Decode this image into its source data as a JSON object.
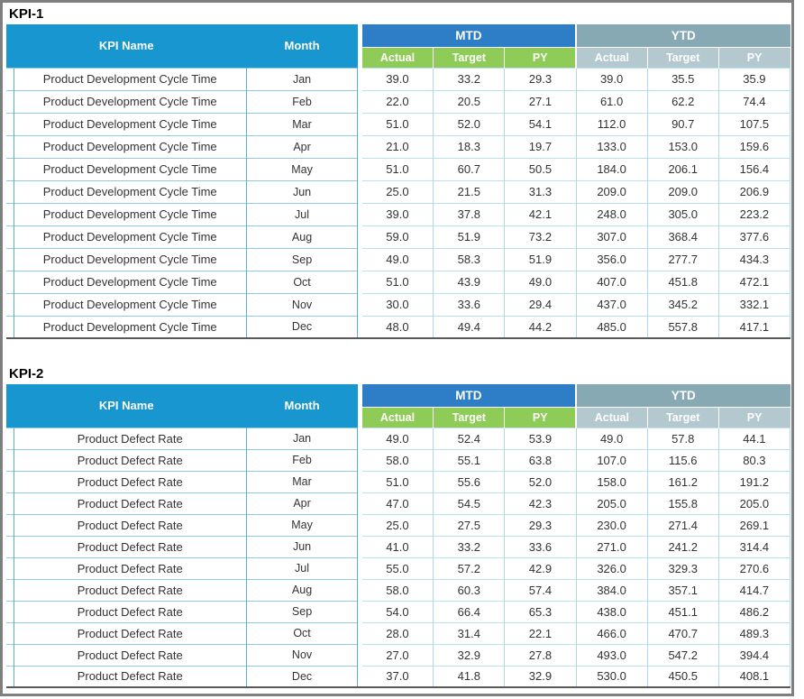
{
  "colors": {
    "frame_gray": "#7F7F7F",
    "header_blue": "#1796D0",
    "mtd_blue": "#2E7EC7",
    "mtd_subheader_green": "#8FCB57",
    "ytd_gray": "#87A9B3",
    "ytd_subheader_gray": "#B4C8D0",
    "cell_border_teal": "#55B1CF",
    "cell_border_light": "#ABD9EA",
    "table_bottom_border": "#595959"
  },
  "tables": [
    {
      "title": "KPI-1",
      "header": {
        "kpi_name": "KPI Name",
        "month": "Month",
        "mtd": "MTD",
        "ytd": "YTD",
        "mtd_actual": "Actual",
        "mtd_target": "Target",
        "mtd_py": "PY",
        "ytd_actual": "Actual",
        "ytd_target": "Target",
        "ytd_py": "PY"
      },
      "rows": [
        {
          "kpi": "Product Development Cycle Time",
          "month": "Jan",
          "mtd_actual": "39.0",
          "mtd_target": "33.2",
          "mtd_py": "29.3",
          "ytd_actual": "39.0",
          "ytd_target": "35.5",
          "ytd_py": "35.9"
        },
        {
          "kpi": "Product Development Cycle Time",
          "month": "Feb",
          "mtd_actual": "22.0",
          "mtd_target": "20.5",
          "mtd_py": "27.1",
          "ytd_actual": "61.0",
          "ytd_target": "62.2",
          "ytd_py": "74.4"
        },
        {
          "kpi": "Product Development Cycle Time",
          "month": "Mar",
          "mtd_actual": "51.0",
          "mtd_target": "52.0",
          "mtd_py": "54.1",
          "ytd_actual": "112.0",
          "ytd_target": "90.7",
          "ytd_py": "107.5"
        },
        {
          "kpi": "Product Development Cycle Time",
          "month": "Apr",
          "mtd_actual": "21.0",
          "mtd_target": "18.3",
          "mtd_py": "19.7",
          "ytd_actual": "133.0",
          "ytd_target": "153.0",
          "ytd_py": "159.6"
        },
        {
          "kpi": "Product Development Cycle Time",
          "month": "May",
          "mtd_actual": "51.0",
          "mtd_target": "60.7",
          "mtd_py": "50.5",
          "ytd_actual": "184.0",
          "ytd_target": "206.1",
          "ytd_py": "156.4"
        },
        {
          "kpi": "Product Development Cycle Time",
          "month": "Jun",
          "mtd_actual": "25.0",
          "mtd_target": "21.5",
          "mtd_py": "31.3",
          "ytd_actual": "209.0",
          "ytd_target": "209.0",
          "ytd_py": "206.9"
        },
        {
          "kpi": "Product Development Cycle Time",
          "month": "Jul",
          "mtd_actual": "39.0",
          "mtd_target": "37.8",
          "mtd_py": "42.1",
          "ytd_actual": "248.0",
          "ytd_target": "305.0",
          "ytd_py": "223.2"
        },
        {
          "kpi": "Product Development Cycle Time",
          "month": "Aug",
          "mtd_actual": "59.0",
          "mtd_target": "51.9",
          "mtd_py": "73.2",
          "ytd_actual": "307.0",
          "ytd_target": "368.4",
          "ytd_py": "377.6"
        },
        {
          "kpi": "Product Development Cycle Time",
          "month": "Sep",
          "mtd_actual": "49.0",
          "mtd_target": "58.3",
          "mtd_py": "51.9",
          "ytd_actual": "356.0",
          "ytd_target": "277.7",
          "ytd_py": "434.3"
        },
        {
          "kpi": "Product Development Cycle Time",
          "month": "Oct",
          "mtd_actual": "51.0",
          "mtd_target": "43.9",
          "mtd_py": "49.0",
          "ytd_actual": "407.0",
          "ytd_target": "451.8",
          "ytd_py": "472.1"
        },
        {
          "kpi": "Product Development Cycle Time",
          "month": "Nov",
          "mtd_actual": "30.0",
          "mtd_target": "33.6",
          "mtd_py": "29.4",
          "ytd_actual": "437.0",
          "ytd_target": "345.2",
          "ytd_py": "332.1"
        },
        {
          "kpi": "Product Development Cycle Time",
          "month": "Dec",
          "mtd_actual": "48.0",
          "mtd_target": "49.4",
          "mtd_py": "44.2",
          "ytd_actual": "485.0",
          "ytd_target": "557.8",
          "ytd_py": "417.1"
        }
      ]
    },
    {
      "title": "KPI-2",
      "header": {
        "kpi_name": "KPI Name",
        "month": "Month",
        "mtd": "MTD",
        "ytd": "YTD",
        "mtd_actual": "Actual",
        "mtd_target": "Target",
        "mtd_py": "PY",
        "ytd_actual": "Actual",
        "ytd_target": "Target",
        "ytd_py": "PY"
      },
      "rows": [
        {
          "kpi": "Product Defect Rate",
          "month": "Jan",
          "mtd_actual": "49.0",
          "mtd_target": "52.4",
          "mtd_py": "53.9",
          "ytd_actual": "49.0",
          "ytd_target": "57.8",
          "ytd_py": "44.1"
        },
        {
          "kpi": "Product Defect Rate",
          "month": "Feb",
          "mtd_actual": "58.0",
          "mtd_target": "55.1",
          "mtd_py": "63.8",
          "ytd_actual": "107.0",
          "ytd_target": "115.6",
          "ytd_py": "80.3"
        },
        {
          "kpi": "Product Defect Rate",
          "month": "Mar",
          "mtd_actual": "51.0",
          "mtd_target": "55.6",
          "mtd_py": "52.0",
          "ytd_actual": "158.0",
          "ytd_target": "161.2",
          "ytd_py": "191.2"
        },
        {
          "kpi": "Product Defect Rate",
          "month": "Apr",
          "mtd_actual": "47.0",
          "mtd_target": "54.5",
          "mtd_py": "42.3",
          "ytd_actual": "205.0",
          "ytd_target": "155.8",
          "ytd_py": "205.0"
        },
        {
          "kpi": "Product Defect Rate",
          "month": "May",
          "mtd_actual": "25.0",
          "mtd_target": "27.5",
          "mtd_py": "29.3",
          "ytd_actual": "230.0",
          "ytd_target": "271.4",
          "ytd_py": "269.1"
        },
        {
          "kpi": "Product Defect Rate",
          "month": "Jun",
          "mtd_actual": "41.0",
          "mtd_target": "33.2",
          "mtd_py": "33.6",
          "ytd_actual": "271.0",
          "ytd_target": "241.2",
          "ytd_py": "314.4"
        },
        {
          "kpi": "Product Defect Rate",
          "month": "Jul",
          "mtd_actual": "55.0",
          "mtd_target": "57.2",
          "mtd_py": "42.9",
          "ytd_actual": "326.0",
          "ytd_target": "329.3",
          "ytd_py": "270.6"
        },
        {
          "kpi": "Product Defect Rate",
          "month": "Aug",
          "mtd_actual": "58.0",
          "mtd_target": "60.3",
          "mtd_py": "57.4",
          "ytd_actual": "384.0",
          "ytd_target": "357.1",
          "ytd_py": "414.7"
        },
        {
          "kpi": "Product Defect Rate",
          "month": "Sep",
          "mtd_actual": "54.0",
          "mtd_target": "66.4",
          "mtd_py": "65.3",
          "ytd_actual": "438.0",
          "ytd_target": "451.1",
          "ytd_py": "486.2"
        },
        {
          "kpi": "Product Defect Rate",
          "month": "Oct",
          "mtd_actual": "28.0",
          "mtd_target": "31.4",
          "mtd_py": "22.1",
          "ytd_actual": "466.0",
          "ytd_target": "470.7",
          "ytd_py": "489.3"
        },
        {
          "kpi": "Product Defect Rate",
          "month": "Nov",
          "mtd_actual": "27.0",
          "mtd_target": "32.9",
          "mtd_py": "27.8",
          "ytd_actual": "493.0",
          "ytd_target": "547.2",
          "ytd_py": "394.4"
        },
        {
          "kpi": "Product Defect Rate",
          "month": "Dec",
          "mtd_actual": "37.0",
          "mtd_target": "41.8",
          "mtd_py": "32.9",
          "ytd_actual": "530.0",
          "ytd_target": "450.5",
          "ytd_py": "408.1"
        }
      ]
    }
  ]
}
